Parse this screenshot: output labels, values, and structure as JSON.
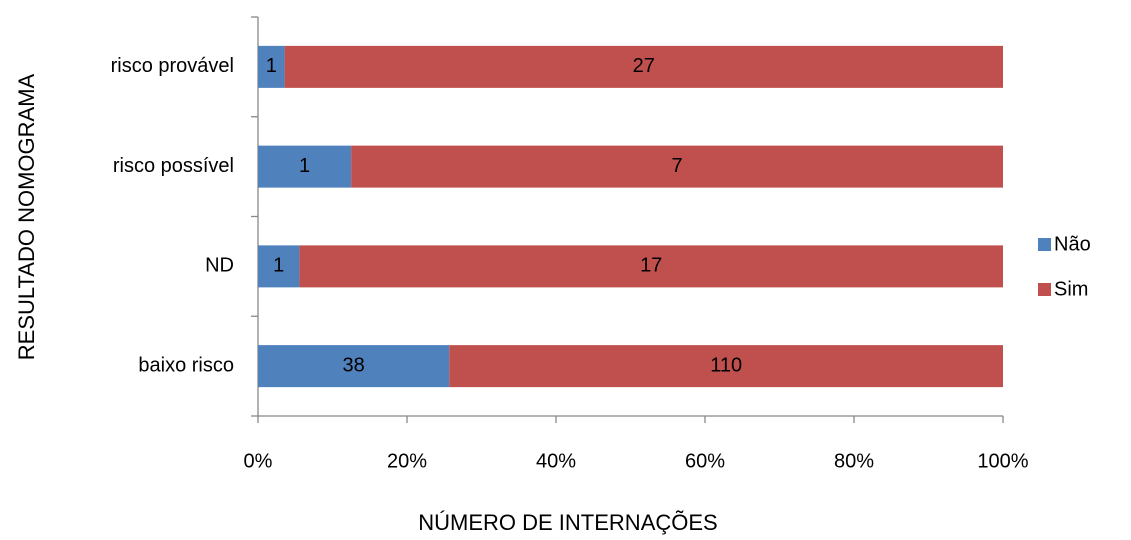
{
  "chart_data": {
    "type": "bar",
    "orientation": "horizontal",
    "stacking": "percent",
    "x_label": "NÚMERO DE INTERNAÇÕES",
    "y_label": "RESULTADO NOMOGRAMA",
    "categories": [
      "risco provável",
      "risco possível",
      "ND",
      "baixo risco"
    ],
    "series": [
      {
        "name": "Não",
        "color": "#4f81bd",
        "values": [
          1,
          1,
          1,
          38
        ]
      },
      {
        "name": "Sim",
        "color": "#c0504d",
        "values": [
          27,
          7,
          17,
          110
        ]
      }
    ],
    "xlim": [
      0,
      100
    ],
    "xticks": [
      {
        "value": 0,
        "label": "0%"
      },
      {
        "value": 20,
        "label": "20%"
      },
      {
        "value": 40,
        "label": "40%"
      },
      {
        "value": 60,
        "label": "60%"
      },
      {
        "value": 80,
        "label": "80%"
      },
      {
        "value": 100,
        "label": "100%"
      }
    ],
    "grid": false,
    "legend": "right"
  }
}
